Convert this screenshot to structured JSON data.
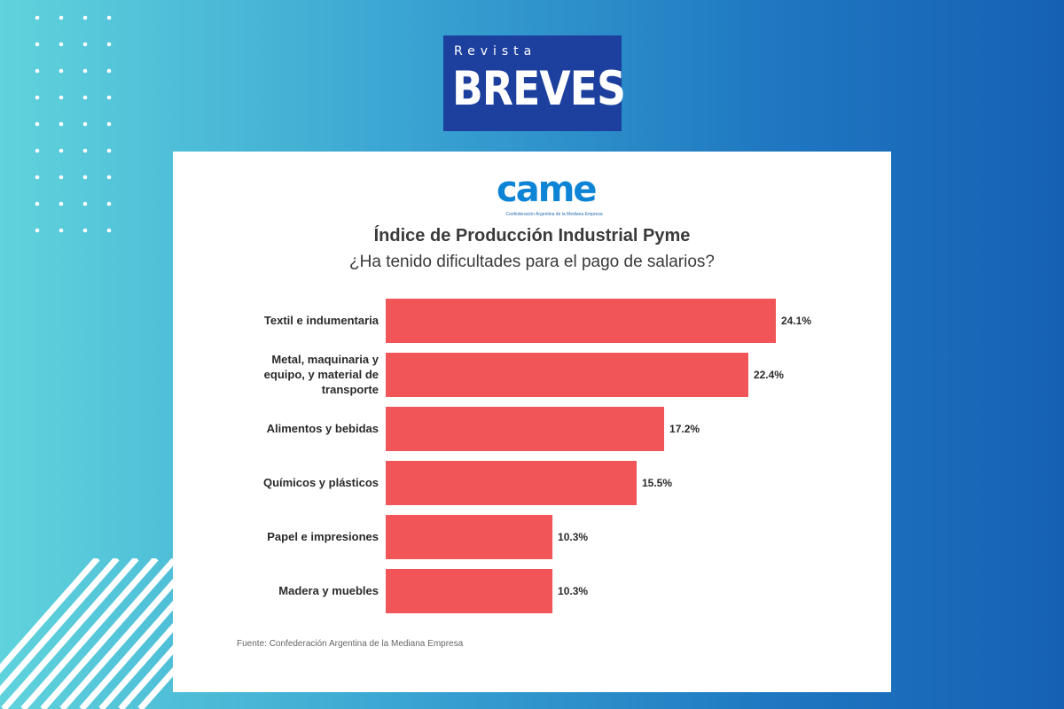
{
  "header": {
    "brand_small": "Revista",
    "brand_big": "BREVES"
  },
  "card": {
    "logo_text": "came",
    "logo_subtext": "Confederación Argentina de la Mediana Empresa",
    "source": "Fuente: Confederación Argentina de la Mediana Empresa"
  },
  "colors": {
    "bar": "#f15557",
    "brand_bg": "#1d3f9e",
    "logo": "#0d84d6"
  },
  "chart_data": {
    "type": "bar",
    "orientation": "horizontal",
    "title": "Índice de Producción Industrial Pyme",
    "subtitle": "¿Ha tenido dificultades para el pago de salarios?",
    "categories": [
      [
        "Textil e indumentaria"
      ],
      [
        "Metal, maquinaria y",
        "equipo, y material de",
        "transporte"
      ],
      [
        "Alimentos y bebidas"
      ],
      [
        "Químicos y plásticos"
      ],
      [
        "Papel e impresiones"
      ],
      [
        "Madera y muebles"
      ]
    ],
    "values": [
      24.1,
      22.4,
      17.2,
      15.5,
      10.3,
      10.3
    ],
    "value_labels": [
      "24.1%",
      "22.4%",
      "17.2%",
      "15.5%",
      "10.3%",
      "10.3%"
    ],
    "xlim": [
      0,
      24.1
    ],
    "grid": false,
    "legend": "none"
  }
}
